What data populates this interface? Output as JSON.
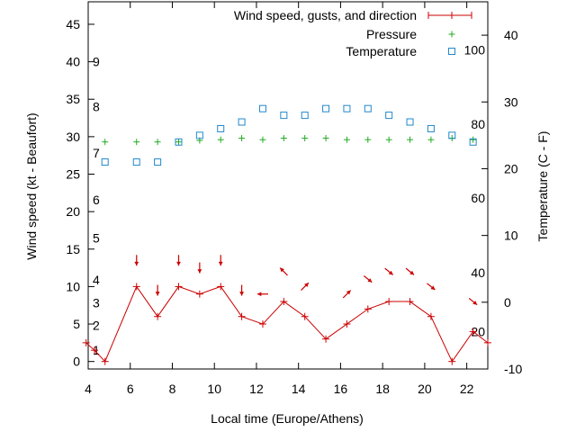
{
  "chart_data": {
    "type": "line",
    "xlabel": "Local time (Europe/Athens)",
    "ylabel_left": "Wind speed (kt - Beaufort)",
    "ylabel_right": "Temperature (C - F)",
    "xlim": [
      4,
      23
    ],
    "ylim_left": [
      -1,
      48
    ],
    "ylim_right": [
      -10,
      45
    ],
    "x_ticks": [
      4,
      6,
      8,
      10,
      12,
      14,
      16,
      18,
      20,
      22
    ],
    "y_ticks_left": [
      0,
      5,
      10,
      15,
      20,
      25,
      30,
      35,
      40,
      45
    ],
    "y_ticks_right": [
      -10,
      0,
      10,
      20,
      30,
      40
    ],
    "beaufort_labels": [
      {
        "value": 1.5,
        "label": "1"
      },
      {
        "value": 4.8,
        "label": "2"
      },
      {
        "value": 7.8,
        "label": "3"
      },
      {
        "value": 10.9,
        "label": "4"
      },
      {
        "value": 16.5,
        "label": "5"
      },
      {
        "value": 21.6,
        "label": "6"
      },
      {
        "value": 27.8,
        "label": "7"
      },
      {
        "value": 34.0,
        "label": "8"
      },
      {
        "value": 40.0,
        "label": "9"
      }
    ],
    "fahrenheit_labels": [
      {
        "celsius": -4.4,
        "label": "20"
      },
      {
        "celsius": 4.4,
        "label": "40"
      },
      {
        "celsius": 15.6,
        "label": "60"
      },
      {
        "celsius": 26.7,
        "label": "80"
      },
      {
        "celsius": 37.8,
        "label": "100"
      }
    ],
    "legend": [
      {
        "label": "Wind speed, gusts, and direction",
        "symbol": "line-plus",
        "color": "#cc0000"
      },
      {
        "label": "Pressure",
        "symbol": "plus",
        "color": "#22aa22"
      },
      {
        "label": "Temperature",
        "symbol": "square",
        "color": "#2288cc"
      }
    ],
    "series": [
      {
        "name": "Wind speed, gusts, and direction",
        "color": "#cc0000",
        "x": [
          3.9,
          4.3,
          4.8,
          6.3,
          7.3,
          8.3,
          9.3,
          10.3,
          11.3,
          12.3,
          13.3,
          14.3,
          15.3,
          16.3,
          17.3,
          18.3,
          19.3,
          20.3,
          21.3,
          22.3,
          23.0
        ],
        "y": [
          2.5,
          1.5,
          0,
          10,
          6,
          10,
          9,
          10,
          6,
          5,
          8,
          6,
          3,
          5,
          7,
          8,
          8,
          6,
          0,
          4,
          2.5
        ]
      },
      {
        "name": "Pressure",
        "color": "#22aa22",
        "x": [
          4.8,
          6.3,
          7.3,
          8.3,
          9.3,
          10.3,
          11.3,
          12.3,
          13.3,
          14.3,
          15.3,
          16.3,
          17.3,
          18.3,
          19.3,
          20.3,
          21.3,
          22.3
        ],
        "y": [
          29.3,
          29.3,
          29.3,
          29.3,
          29.5,
          29.6,
          29.8,
          29.6,
          29.8,
          29.8,
          29.8,
          29.6,
          29.6,
          29.6,
          29.6,
          29.6,
          29.8,
          29.6
        ]
      },
      {
        "name": "Temperature",
        "color": "#2288cc",
        "x": [
          4.8,
          6.3,
          7.3,
          8.3,
          9.3,
          10.3,
          11.3,
          12.3,
          13.3,
          14.3,
          15.3,
          16.3,
          17.3,
          18.3,
          19.3,
          20.3,
          21.3,
          22.3
        ],
        "y": [
          21,
          21,
          21,
          24,
          25,
          26,
          27,
          29,
          28,
          28,
          29,
          29,
          29,
          28,
          27,
          26,
          25,
          24
        ]
      }
    ],
    "wind_arrows": [
      {
        "x": 6.3,
        "y": 13.5,
        "direction": "down"
      },
      {
        "x": 7.3,
        "y": 9.5,
        "direction": "down"
      },
      {
        "x": 8.3,
        "y": 13.5,
        "direction": "down"
      },
      {
        "x": 9.3,
        "y": 12.5,
        "direction": "down"
      },
      {
        "x": 10.3,
        "y": 13.5,
        "direction": "down"
      },
      {
        "x": 11.3,
        "y": 9.5,
        "direction": "down"
      },
      {
        "x": 12.3,
        "y": 9.0,
        "direction": "left"
      },
      {
        "x": 13.3,
        "y": 12.0,
        "direction": "up-left"
      },
      {
        "x": 14.3,
        "y": 10.0,
        "direction": "up-right"
      },
      {
        "x": 16.3,
        "y": 9.0,
        "direction": "up-right"
      },
      {
        "x": 17.3,
        "y": 11.0,
        "direction": "down-right"
      },
      {
        "x": 18.3,
        "y": 12.0,
        "direction": "down-right"
      },
      {
        "x": 19.3,
        "y": 12.0,
        "direction": "down-right"
      },
      {
        "x": 20.3,
        "y": 10.0,
        "direction": "down-right"
      },
      {
        "x": 22.3,
        "y": 8.0,
        "direction": "down-right"
      }
    ],
    "grid": false,
    "legend_position": "top-right"
  }
}
